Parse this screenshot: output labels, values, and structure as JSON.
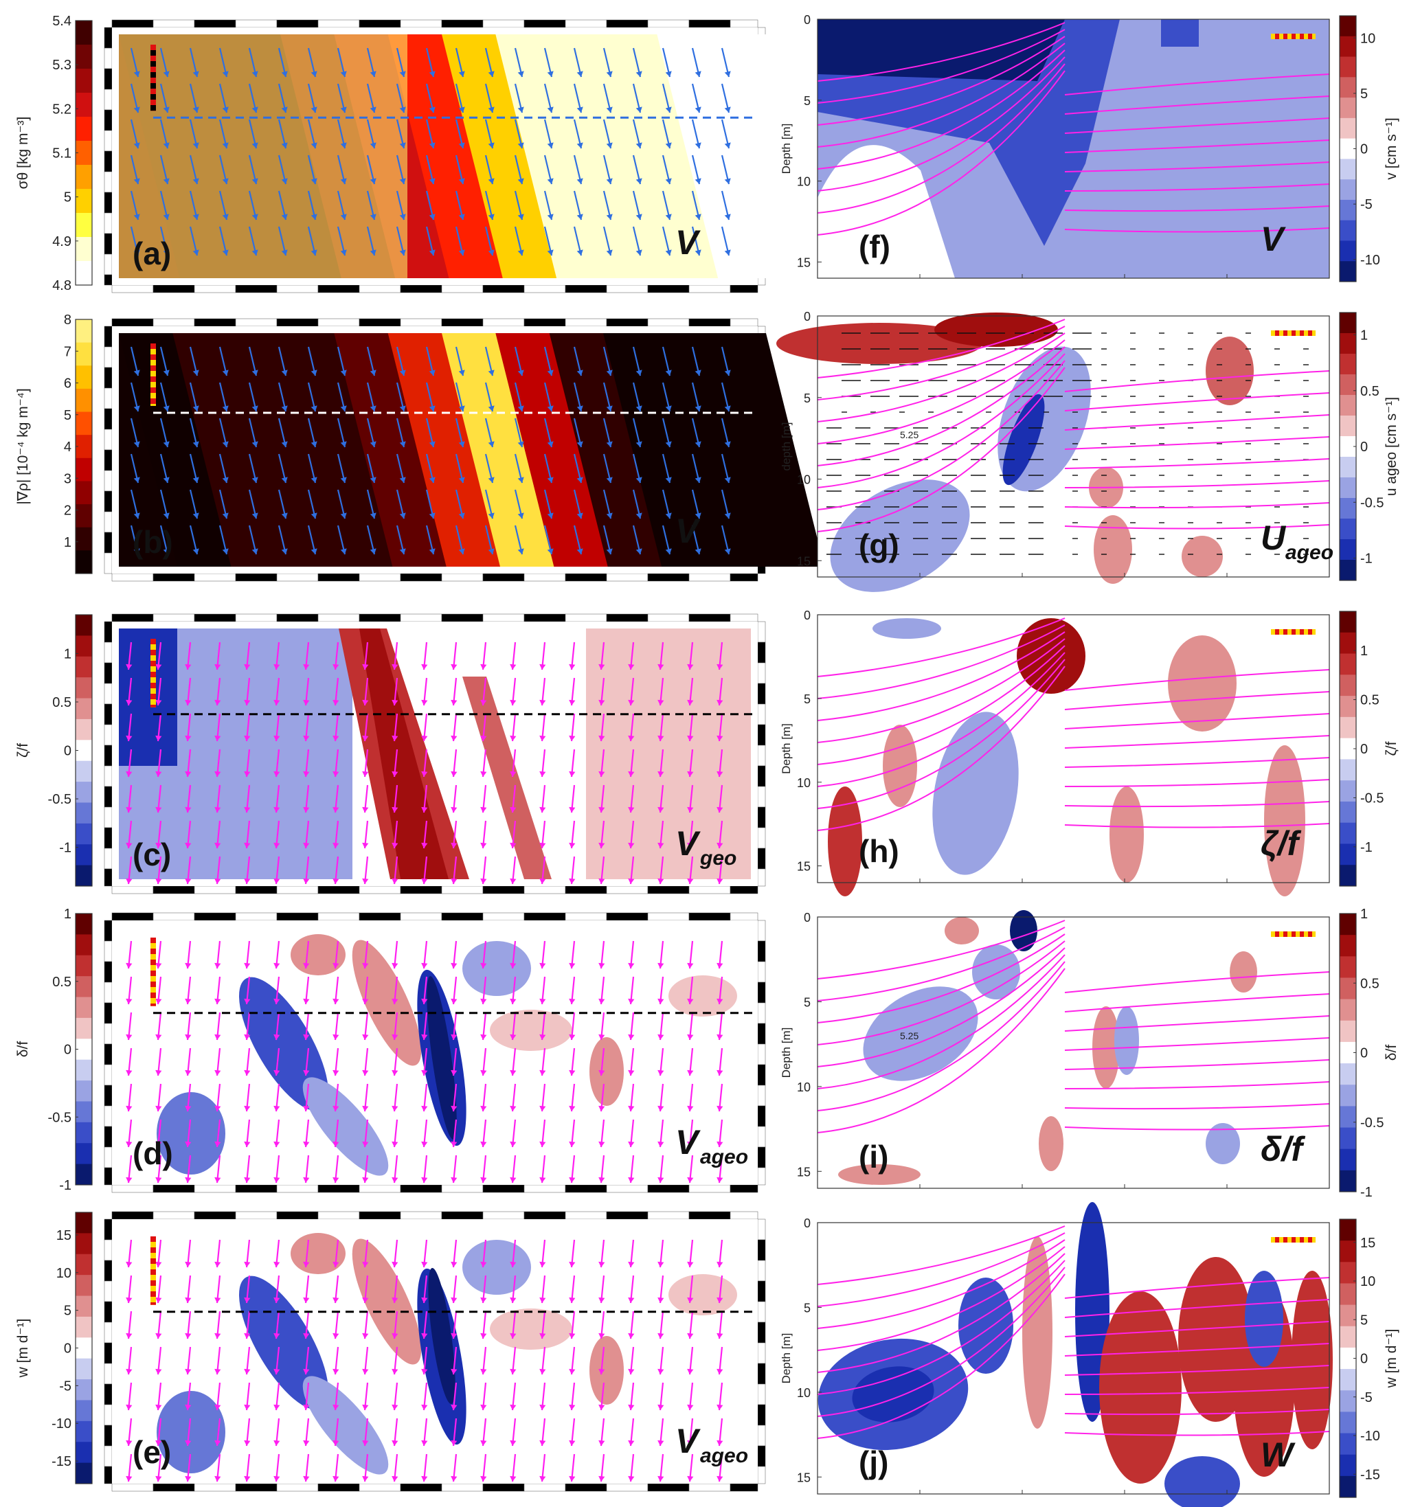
{
  "chart_data": [
    {
      "id": "a",
      "type": "heatmap",
      "label": "(a)",
      "overlay": "V",
      "colorbar": {
        "label": "σθ [kg m⁻³]",
        "ticks": [
          "5.4",
          "5.3",
          "5.2",
          "5.1",
          "5",
          "4.9",
          "4.8"
        ],
        "range": [
          4.8,
          5.4
        ],
        "colormap": "hot"
      },
      "vector_color": "#2f6fe0",
      "guide_color": "#2f6fe0",
      "field": [
        4.85,
        4.86,
        4.88,
        4.9,
        4.95,
        5.05,
        5.25,
        5.34,
        5.36,
        5.37,
        5.38,
        5.38
      ]
    },
    {
      "id": "b",
      "type": "heatmap",
      "label": "(b)",
      "overlay": "V",
      "colorbar": {
        "label": "|∇ρ| [10⁻⁴ kg m⁻⁴]",
        "ticks": [
          "8",
          "7",
          "6",
          "5",
          "4",
          "3",
          "2",
          "1"
        ],
        "range": [
          0,
          8
        ],
        "colormap": "hot"
      },
      "vector_color": "#2f6fe0",
      "guide_color": "#ffffff",
      "field": [
        0.3,
        0.5,
        0.8,
        0.6,
        1.5,
        4.0,
        7.5,
        3.0,
        0.8,
        0.3,
        0.2,
        0.2
      ]
    },
    {
      "id": "c",
      "type": "heatmap",
      "label": "(c)",
      "overlay": "V",
      "overlay_sub": "geo",
      "colorbar": {
        "label": "ζ/f",
        "ticks": [
          "1",
          "0.5",
          "0",
          "-0.5",
          "-1"
        ],
        "range": [
          -1.4,
          1.4
        ],
        "colormap": "balance"
      },
      "vector_color": "#ff1ff0",
      "guide_color": "#000000"
    },
    {
      "id": "d",
      "type": "heatmap",
      "label": "(d)",
      "overlay": "V",
      "overlay_sub": "ageo",
      "colorbar": {
        "label": "δ/f",
        "ticks": [
          "1",
          "0.5",
          "0",
          "-0.5",
          "-1"
        ],
        "range": [
          -1,
          1
        ],
        "colormap": "balance"
      },
      "vector_color": "#ff1ff0",
      "guide_color": "#000000"
    },
    {
      "id": "e",
      "type": "heatmap",
      "label": "(e)",
      "overlay": "V",
      "overlay_sub": "ageo",
      "colorbar": {
        "label": "w [m d⁻¹]",
        "ticks": [
          "15",
          "10",
          "5",
          "0",
          "-5",
          "-10",
          "-15"
        ],
        "range": [
          -18,
          18
        ],
        "colormap": "balance"
      },
      "vector_color": "#ff1ff0",
      "guide_color": "#000000"
    },
    {
      "id": "f",
      "type": "heatmap",
      "label": "(f)",
      "overlay": "V",
      "ylabel": "Depth [m]",
      "yticks": [
        "0",
        "5",
        "10",
        "15"
      ],
      "ylim": [
        0,
        16
      ],
      "colorbar": {
        "label": "v [cm s⁻¹]",
        "ticks": [
          "10",
          "5",
          "0",
          "-5",
          "-10"
        ],
        "range": [
          -12,
          12
        ],
        "colormap": "balance"
      }
    },
    {
      "id": "g",
      "type": "heatmap",
      "label": "(g)",
      "overlay": "U",
      "overlay_sub": "ageo",
      "ylabel": "depth [m]",
      "yticks": [
        "0",
        "5",
        "10",
        "15"
      ],
      "ylim": [
        0,
        16
      ],
      "contour_label": "5.25",
      "colorbar": {
        "label": "u ageo [cm s⁻¹]",
        "ticks": [
          "1",
          "0.5",
          "0",
          "-0.5",
          "-1"
        ],
        "range": [
          -1.2,
          1.2
        ],
        "colormap": "balance"
      }
    },
    {
      "id": "h",
      "type": "heatmap",
      "label": "(h)",
      "overlay": "ζ/f",
      "ylabel": "Depth [m]",
      "yticks": [
        "0",
        "5",
        "10",
        "15"
      ],
      "ylim": [
        0,
        16
      ],
      "colorbar": {
        "label": "ζ/f",
        "ticks": [
          "1",
          "0.5",
          "0",
          "-0.5",
          "-1"
        ],
        "range": [
          -1.4,
          1.4
        ],
        "colormap": "balance"
      }
    },
    {
      "id": "i",
      "type": "heatmap",
      "label": "(i)",
      "overlay": "δ/f",
      "ylabel": "Depth [m]",
      "yticks": [
        "0",
        "5",
        "10",
        "15"
      ],
      "ylim": [
        0,
        16
      ],
      "contour_label": "5.25",
      "colorbar": {
        "label": "δ/f",
        "ticks": [
          "1",
          "0.5",
          "0",
          "-0.5",
          "-1"
        ],
        "range": [
          -1,
          1
        ],
        "colormap": "balance"
      }
    },
    {
      "id": "j",
      "type": "heatmap",
      "label": "(j)",
      "overlay": "W",
      "ylabel": "Depth [m]",
      "yticks": [
        "0",
        "5",
        "10",
        "15"
      ],
      "ylim": [
        0,
        16
      ],
      "colorbar": {
        "label": "w [m d⁻¹]",
        "ticks": [
          "15",
          "10",
          "5",
          "0",
          "-5",
          "-10",
          "-15"
        ],
        "range": [
          -18,
          18
        ],
        "colormap": "balance"
      }
    }
  ]
}
